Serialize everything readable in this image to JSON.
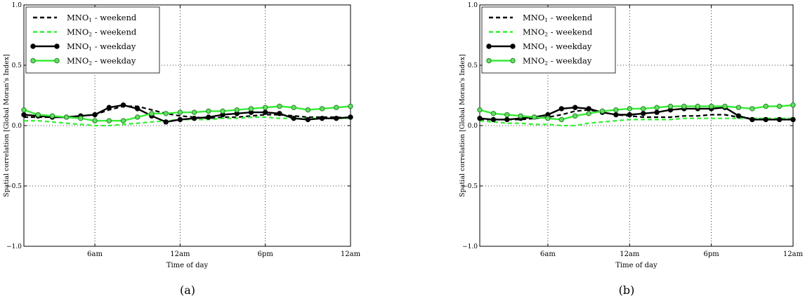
{
  "chart_data": [
    {
      "type": "line",
      "panel_label": "(a)",
      "xlabel": "Time of day",
      "ylabel": "Spatial correlation [Global Moran's Index]",
      "xlim": [
        0,
        23
      ],
      "ylim": [
        -1.0,
        1.0
      ],
      "x_ticks": [
        {
          "value": 5,
          "label": "6am"
        },
        {
          "value": 11,
          "label": "12am"
        },
        {
          "value": 17,
          "label": "6pm"
        },
        {
          "value": 23,
          "label": "12am"
        }
      ],
      "y_ticks": [
        {
          "value": 1.0,
          "label": "1.0"
        },
        {
          "value": 0.5,
          "label": "0.5"
        },
        {
          "value": 0.0,
          "label": "0.0"
        },
        {
          "value": -0.5,
          "label": "−0.5"
        },
        {
          "value": -1.0,
          "label": "−1.0"
        }
      ],
      "grid": true,
      "legend_position": "top-left",
      "x": [
        0,
        1,
        2,
        3,
        4,
        5,
        6,
        7,
        8,
        9,
        10,
        11,
        12,
        13,
        14,
        15,
        16,
        17,
        18,
        19,
        20,
        21,
        22,
        23
      ],
      "series": [
        {
          "name": "MNO",
          "subscript": "1",
          "suffix": " - weekend",
          "color": "#000000",
          "style": "dashed",
          "markers": false,
          "values": [
            0.07,
            0.07,
            0.07,
            0.07,
            0.08,
            0.09,
            0.13,
            0.16,
            0.16,
            0.13,
            0.1,
            0.08,
            0.07,
            0.06,
            0.07,
            0.07,
            0.08,
            0.09,
            0.09,
            0.08,
            0.07,
            0.07,
            0.07,
            0.06
          ]
        },
        {
          "name": "MNO",
          "subscript": "2",
          "suffix": " - weekend",
          "color": "#33ee33",
          "style": "dashed",
          "markers": false,
          "values": [
            0.04,
            0.04,
            0.03,
            0.02,
            0.01,
            0.0,
            0.0,
            0.01,
            0.02,
            0.03,
            0.04,
            0.05,
            0.05,
            0.05,
            0.06,
            0.06,
            0.07,
            0.07,
            0.06,
            0.06,
            0.06,
            0.06,
            0.06,
            0.06
          ]
        },
        {
          "name": "MNO",
          "subscript": "1",
          "suffix": " - weekday",
          "color": "#000000",
          "style": "solid",
          "markers": true,
          "values": [
            0.09,
            0.08,
            0.07,
            0.07,
            0.08,
            0.09,
            0.15,
            0.17,
            0.14,
            0.08,
            0.03,
            0.05,
            0.06,
            0.07,
            0.09,
            0.1,
            0.11,
            0.11,
            0.1,
            0.06,
            0.05,
            0.06,
            0.06,
            0.07
          ]
        },
        {
          "name": "MNO",
          "subscript": "2",
          "suffix": " - weekday",
          "color": "#33ee33",
          "style": "solid",
          "markers": true,
          "values": [
            0.13,
            0.09,
            0.08,
            0.07,
            0.06,
            0.04,
            0.04,
            0.04,
            0.07,
            0.1,
            0.1,
            0.11,
            0.11,
            0.12,
            0.12,
            0.13,
            0.14,
            0.15,
            0.16,
            0.15,
            0.13,
            0.14,
            0.15,
            0.16
          ]
        }
      ]
    },
    {
      "type": "line",
      "panel_label": "(b)",
      "xlabel": "Time of day",
      "ylabel": "Spatial correlation [Global Moran's Index]",
      "xlim": [
        0,
        23
      ],
      "ylim": [
        -1.0,
        1.0
      ],
      "x_ticks": [
        {
          "value": 5,
          "label": "6am"
        },
        {
          "value": 11,
          "label": "12am"
        },
        {
          "value": 17,
          "label": "6pm"
        },
        {
          "value": 23,
          "label": "12am"
        }
      ],
      "y_ticks": [
        {
          "value": 1.0,
          "label": "1.0"
        },
        {
          "value": 0.5,
          "label": "0.5"
        },
        {
          "value": 0.0,
          "label": "0.0"
        },
        {
          "value": -0.5,
          "label": "−0.5"
        },
        {
          "value": -1.0,
          "label": "−1.0"
        }
      ],
      "grid": true,
      "legend_position": "top-left",
      "x": [
        0,
        1,
        2,
        3,
        4,
        5,
        6,
        7,
        8,
        9,
        10,
        11,
        12,
        13,
        14,
        15,
        16,
        17,
        18,
        19,
        20,
        21,
        22,
        23
      ],
      "series": [
        {
          "name": "MNO",
          "subscript": "1",
          "suffix": " - weekend",
          "color": "#000000",
          "style": "dashed",
          "markers": false,
          "values": [
            0.05,
            0.05,
            0.05,
            0.05,
            0.06,
            0.07,
            0.09,
            0.12,
            0.13,
            0.11,
            0.09,
            0.08,
            0.07,
            0.07,
            0.07,
            0.08,
            0.08,
            0.09,
            0.09,
            0.07,
            0.06,
            0.05,
            0.05,
            0.05
          ]
        },
        {
          "name": "MNO",
          "subscript": "2",
          "suffix": " - weekend",
          "color": "#33ee33",
          "style": "dashed",
          "markers": false,
          "values": [
            0.04,
            0.03,
            0.02,
            0.02,
            0.01,
            0.01,
            0.0,
            0.0,
            0.02,
            0.03,
            0.04,
            0.05,
            0.05,
            0.05,
            0.05,
            0.06,
            0.06,
            0.06,
            0.06,
            0.06,
            0.06,
            0.06,
            0.06,
            0.06
          ]
        },
        {
          "name": "MNO",
          "subscript": "1",
          "suffix": " - weekday",
          "color": "#000000",
          "style": "solid",
          "markers": true,
          "values": [
            0.06,
            0.05,
            0.05,
            0.06,
            0.07,
            0.09,
            0.14,
            0.15,
            0.14,
            0.11,
            0.09,
            0.09,
            0.1,
            0.11,
            0.13,
            0.14,
            0.14,
            0.14,
            0.15,
            0.08,
            0.05,
            0.05,
            0.05,
            0.05
          ]
        },
        {
          "name": "MNO",
          "subscript": "2",
          "suffix": " - weekday",
          "color": "#33ee33",
          "style": "solid",
          "markers": true,
          "values": [
            0.13,
            0.1,
            0.09,
            0.08,
            0.07,
            0.06,
            0.05,
            0.08,
            0.1,
            0.12,
            0.13,
            0.14,
            0.14,
            0.15,
            0.16,
            0.16,
            0.16,
            0.16,
            0.16,
            0.15,
            0.14,
            0.16,
            0.16,
            0.17
          ]
        }
      ]
    }
  ]
}
